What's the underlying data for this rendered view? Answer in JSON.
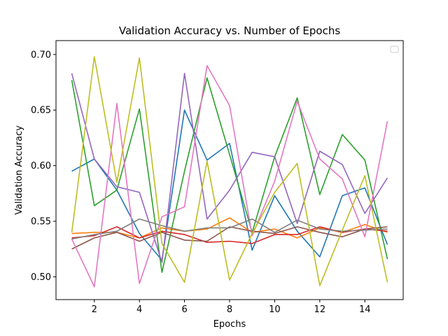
{
  "chart_data": {
    "type": "line",
    "title": "Validation Accuracy vs. Number of Epochs",
    "xlabel": "Epochs",
    "ylabel": "Validation Accuracy",
    "xlim": [
      0.3,
      15.7
    ],
    "ylim": [
      0.4795,
      0.7125
    ],
    "xticks": [
      2,
      4,
      6,
      8,
      10,
      12,
      14
    ],
    "yticks": [
      0.5,
      0.55,
      0.6,
      0.65,
      0.7
    ],
    "xtick_labels": [
      "2",
      "4",
      "6",
      "8",
      "10",
      "12",
      "14"
    ],
    "ytick_labels": [
      "0.50",
      "0.55",
      "0.60",
      "0.65",
      "0.70"
    ],
    "grid": false,
    "legend": "top-right, empty",
    "x": [
      1,
      2,
      3,
      4,
      5,
      6,
      7,
      8,
      9,
      10,
      11,
      12,
      13,
      14,
      15
    ],
    "series": [
      {
        "color": "#1f77b4",
        "values": [
          0.595,
          0.606,
          0.578,
          0.539,
          0.515,
          0.65,
          0.605,
          0.62,
          0.524,
          0.573,
          0.541,
          0.518,
          0.573,
          0.58,
          0.529
        ]
      },
      {
        "color": "#ff7f0e",
        "values": [
          0.539,
          0.54,
          0.54,
          0.535,
          0.544,
          0.541,
          0.543,
          0.553,
          0.54,
          0.543,
          0.535,
          0.544,
          0.54,
          0.547,
          0.54
        ]
      },
      {
        "color": "#2ca02c",
        "values": [
          0.677,
          0.564,
          0.578,
          0.651,
          0.504,
          0.595,
          0.679,
          0.61,
          0.54,
          0.608,
          0.661,
          0.574,
          0.628,
          0.605,
          0.516
        ]
      },
      {
        "color": "#d62728",
        "values": [
          0.535,
          0.537,
          0.545,
          0.535,
          0.541,
          0.538,
          0.531,
          0.532,
          0.53,
          0.538,
          0.538,
          0.545,
          0.54,
          0.543,
          0.541
        ]
      },
      {
        "color": "#9467bd",
        "values": [
          0.683,
          0.606,
          0.581,
          0.576,
          0.513,
          0.683,
          0.552,
          0.578,
          0.612,
          0.608,
          0.548,
          0.613,
          0.601,
          0.557,
          0.589
        ]
      },
      {
        "color": "#8c564b",
        "values": [
          0.525,
          0.535,
          0.54,
          0.532,
          0.54,
          0.533,
          0.532,
          0.545,
          0.541,
          0.539,
          0.545,
          0.54,
          0.536,
          0.543,
          0.545
        ]
      },
      {
        "color": "#e377c2",
        "values": [
          0.534,
          0.491,
          0.656,
          0.494,
          0.554,
          0.563,
          0.69,
          0.654,
          0.537,
          0.586,
          0.658,
          0.606,
          0.588,
          0.536,
          0.64
        ]
      },
      {
        "color": "#7f7f7f",
        "values": [
          0.534,
          0.538,
          0.541,
          0.552,
          0.546,
          0.541,
          0.544,
          0.544,
          0.552,
          0.54,
          0.551,
          0.543,
          0.541,
          0.542,
          0.543
        ]
      },
      {
        "color": "#bcbd22",
        "values": [
          0.54,
          0.698,
          0.585,
          0.697,
          0.53,
          0.495,
          0.604,
          0.497,
          0.539,
          0.576,
          0.602,
          0.492,
          0.542,
          0.591,
          0.495
        ]
      }
    ]
  }
}
